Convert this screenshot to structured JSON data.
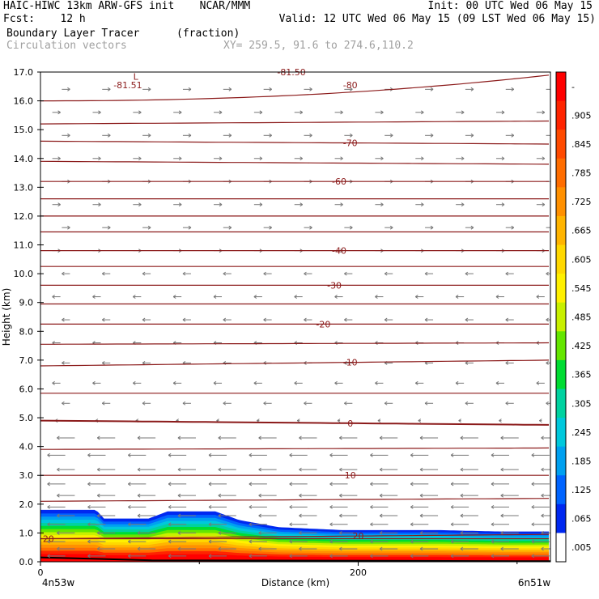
{
  "header": {
    "line1_left": "HAIC-HIWC 13km ARW-GFS init    NCAR/MMM",
    "line1_right": "Init: 00 UTC Wed 06 May 15",
    "line2_left": "Fcst:    12 h",
    "line2_right": "Valid: 12 UTC Wed 06 May 15 (09 LST Wed 06 May 15)",
    "line3_field": "Boundary Layer Tracer",
    "line3_units": "(fraction)",
    "line4_vectors": "Circulation vectors",
    "line4_xy": "XY= 259.5, 91.6 to 274.6,110.2"
  },
  "chart_data": {
    "type": "heatmap",
    "title": "Boundary Layer Tracer (fraction)",
    "xlabel": "Distance (km)",
    "ylabel": "Height (km)",
    "xlim": [
      0,
      321
    ],
    "ylim": [
      0,
      17
    ],
    "x_ticks": [
      0,
      200
    ],
    "x_tick_labels": [
      "0",
      "200"
    ],
    "x_endpoint_labels": [
      "4n53w",
      "6n51w"
    ],
    "y_ticks": [
      0.0,
      1.0,
      2.0,
      3.0,
      4.0,
      5.0,
      6.0,
      7.0,
      8.0,
      9.0,
      10.0,
      11.0,
      12.0,
      13.0,
      14.0,
      15.0,
      16.0,
      17.0
    ],
    "y_tick_labels": [
      "0.0",
      "1.0",
      "2.0",
      "3.0",
      "4.0",
      "5.0",
      "6.0",
      "7.0",
      "8.0",
      "9.0",
      "10.0",
      "11.0",
      "12.0",
      "13.0",
      "14.0",
      "15.0",
      "16.0",
      "17.0"
    ],
    "colorbar": {
      "labels": [
        "-",
        ".905",
        ".845",
        ".785",
        ".725",
        ".665",
        ".605",
        ".545",
        ".485",
        ".425",
        ".365",
        ".305",
        ".245",
        ".185",
        ".125",
        ".065",
        ".005"
      ],
      "colors": [
        "#ff0000",
        "#ff2400",
        "#ff4a00",
        "#ff6d00",
        "#ff9000",
        "#ffb400",
        "#ffd800",
        "#fff000",
        "#c8f000",
        "#64e600",
        "#00dc32",
        "#00d2a0",
        "#00c8dc",
        "#00a0f0",
        "#0064ff",
        "#0028f0",
        "#ffffff"
      ]
    },
    "tracer_top_km": [
      [
        0,
        1.8
      ],
      [
        35,
        1.8
      ],
      [
        40,
        1.5
      ],
      [
        68,
        1.5
      ],
      [
        80,
        1.75
      ],
      [
        110,
        1.75
      ],
      [
        125,
        1.45
      ],
      [
        150,
        1.2
      ],
      [
        190,
        1.1
      ],
      [
        250,
        1.1
      ],
      [
        290,
        1.05
      ],
      [
        321,
        1.05
      ]
    ],
    "temperature_isotherms": [
      {
        "label": "-80",
        "label_x_km": 195,
        "y_start_km": 16.0,
        "y_end_km": 16.9
      },
      {
        "label": "",
        "label_x_km": null,
        "y_start_km": 15.2,
        "y_end_km": 15.3
      },
      {
        "label": "-70",
        "label_x_km": 195,
        "y_start_km": 14.6,
        "y_end_km": 14.5
      },
      {
        "label": "",
        "label_x_km": null,
        "y_start_km": 13.9,
        "y_end_km": 13.8
      },
      {
        "label": "-60",
        "label_x_km": 188,
        "y_start_km": 13.2,
        "y_end_km": 13.2
      },
      {
        "label": "",
        "label_x_km": null,
        "y_start_km": 12.6,
        "y_end_km": 12.6
      },
      {
        "label": "",
        "label_x_km": null,
        "y_start_km": 12.0,
        "y_end_km": 12.0
      },
      {
        "label": "",
        "label_x_km": null,
        "y_start_km": 11.45,
        "y_end_km": 11.45
      },
      {
        "label": "-40",
        "label_x_km": 188,
        "y_start_km": 10.8,
        "y_end_km": 10.8
      },
      {
        "label": "",
        "label_x_km": null,
        "y_start_km": 10.25,
        "y_end_km": 10.25
      },
      {
        "label": "-30",
        "label_x_km": 185,
        "y_start_km": 9.6,
        "y_end_km": 9.6
      },
      {
        "label": "",
        "label_x_km": null,
        "y_start_km": 8.95,
        "y_end_km": 8.95
      },
      {
        "label": "-20",
        "label_x_km": 178,
        "y_start_km": 8.25,
        "y_end_km": 8.25
      },
      {
        "label": "",
        "label_x_km": null,
        "y_start_km": 7.55,
        "y_end_km": 7.6
      },
      {
        "label": "-10",
        "label_x_km": 195,
        "y_start_km": 6.8,
        "y_end_km": 7.0
      },
      {
        "label": "",
        "label_x_km": null,
        "y_start_km": 5.85,
        "y_end_km": 5.85
      },
      {
        "label": "0",
        "label_x_km": 195,
        "y_start_km": 4.9,
        "y_end_km": 4.75
      },
      {
        "label": "",
        "label_x_km": null,
        "y_start_km": 3.9,
        "y_end_km": 3.95
      },
      {
        "label": "10",
        "label_x_km": 195,
        "y_start_km": 3.0,
        "y_end_km": 3.0
      },
      {
        "label": "",
        "label_x_km": null,
        "y_start_km": 2.1,
        "y_end_km": 2.2
      },
      {
        "label": "20",
        "label_x_km": 200,
        "y_start_km": 0.8,
        "y_end_km": 0.95
      },
      {
        "label": "20",
        "label_x_km": 5,
        "y_start_km": 0.8,
        "y_end_km": 0.8
      }
    ],
    "annotations": [
      {
        "text": "L",
        "x_km": 60,
        "y_km": 16.85
      },
      {
        "text": "-81.51",
        "x_km": 55,
        "y_km": 16.55
      },
      {
        "text": "-81.50",
        "x_km": 158,
        "y_km": 17.0
      }
    ],
    "vector_rows_km": [
      0.2,
      0.45,
      0.7,
      1.0,
      1.3,
      1.6,
      1.9,
      2.3,
      2.7,
      3.2,
      3.7,
      4.3,
      4.9,
      5.5,
      6.2,
      6.9,
      7.6,
      8.4,
      9.2,
      10.0,
      10.8,
      11.6,
      12.4,
      13.2,
      14.0,
      14.8,
      15.6,
      16.4
    ],
    "vector_direction_by_height": [
      {
        "below_km": 4.6,
        "direction": "west",
        "length": "long"
      },
      {
        "below_km": 5.2,
        "direction": "calm",
        "length": "short"
      },
      {
        "below_km": 10.5,
        "direction": "west",
        "length": "short"
      },
      {
        "below_km": 17.0,
        "direction": "east",
        "length": "short"
      }
    ]
  }
}
